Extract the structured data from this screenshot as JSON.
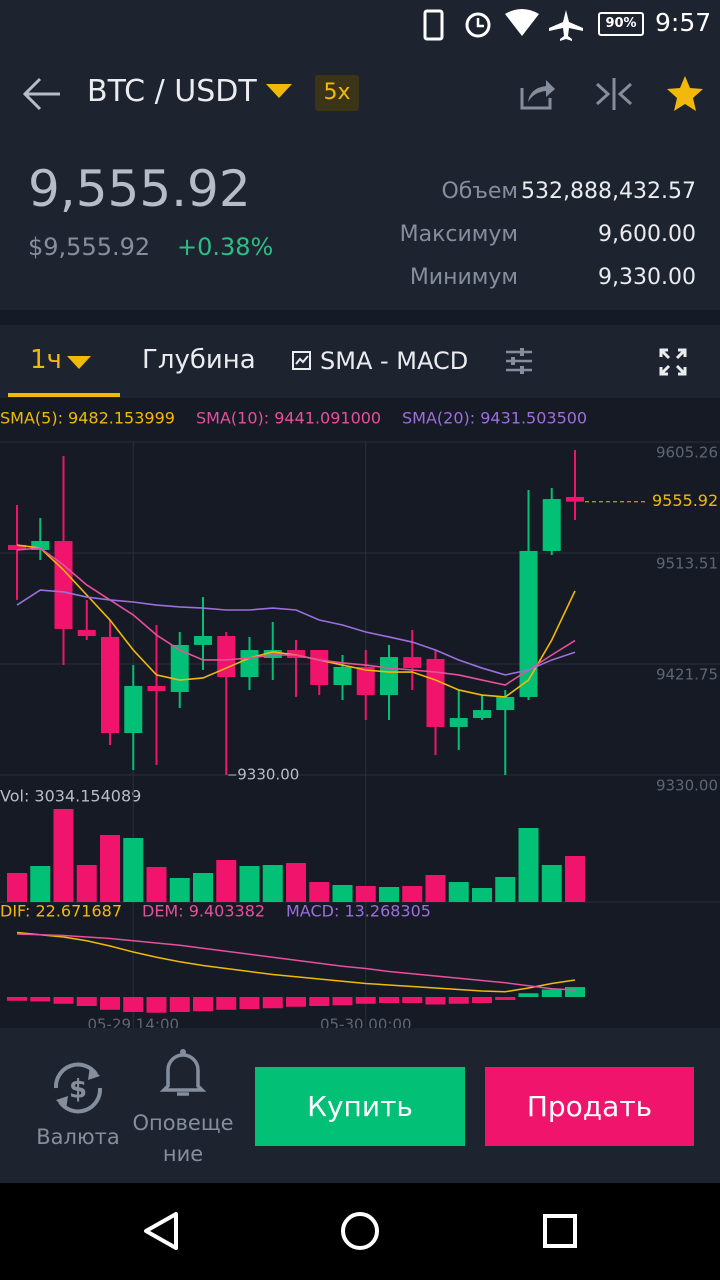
{
  "status": {
    "battery": "90%",
    "time": "9:57"
  },
  "header": {
    "pair": "BTC / USDT",
    "leverage": "5x"
  },
  "ticker": {
    "price": "9,555.92",
    "fiat": "$9,555.92",
    "change": "+0.38%",
    "stats": [
      {
        "label": "Объем",
        "value": "532,888,432.57"
      },
      {
        "label": "Максимум",
        "value": "9,600.00"
      },
      {
        "label": "Минимум",
        "value": "9,330.00"
      }
    ]
  },
  "tabs": [
    "1ч",
    "Глубина",
    "SMA - MACD"
  ],
  "chart_data": {
    "type": "candlestick",
    "sma_legend": [
      "SMA(5): 9482.153999",
      "SMA(10): 9441.091000",
      "SMA(20): 9431.503500"
    ],
    "vol_legend": "Vol: 3034.154089",
    "macd_legend": [
      "DIF: 22.671687",
      "DEM: 9.403382",
      "MACD: 13.268305"
    ],
    "last_price_label": "9555.92",
    "low_label": "9330.00",
    "time_labels": [
      "05-29 14:00",
      "05-30 00:00"
    ],
    "ylim": [
      9330,
      9605.26
    ],
    "yticks": [
      {
        "value": 9330,
        "label": "9330.00"
      },
      9421.75,
      9513.51,
      9605.26
    ],
    "up_color": "#02c076",
    "down_color": "#f0146c",
    "candles": [
      {
        "o": 9520.1,
        "h": 9553.2,
        "l": 9474.7,
        "c": 9516.0
      },
      {
        "o": 9516.0,
        "h": 9542.4,
        "l": 9507.7,
        "c": 9523.4
      },
      {
        "o": 9523.4,
        "h": 9593.7,
        "l": 9420.9,
        "c": 9450.7
      },
      {
        "o": 9449.9,
        "h": 9474.7,
        "l": 9441.6,
        "c": 9444.9
      },
      {
        "o": 9444.1,
        "h": 9458.1,
        "l": 9354.8,
        "c": 9364.7
      },
      {
        "o": 9364.7,
        "h": 9420.9,
        "l": 9334.1,
        "c": 9403.6
      },
      {
        "o": 9403.6,
        "h": 9454.0,
        "l": 9338.3,
        "c": 9399.4
      },
      {
        "o": 9398.6,
        "h": 9448.2,
        "l": 9385.4,
        "c": 9437.5
      },
      {
        "o": 9437.5,
        "h": 9477.1,
        "l": 9416.8,
        "c": 9444.9
      },
      {
        "o": 9444.9,
        "h": 9448.2,
        "l": 9330.0,
        "c": 9411.0
      },
      {
        "o": 9411.0,
        "h": 9444.1,
        "l": 9400.3,
        "c": 9433.3
      },
      {
        "o": 9426.7,
        "h": 9456.5,
        "l": 9408.5,
        "c": 9433.3
      },
      {
        "o": 9433.3,
        "h": 9441.6,
        "l": 9394.5,
        "c": 9426.7
      },
      {
        "o": 9433.3,
        "h": 9433.3,
        "l": 9396.1,
        "c": 9404.4
      },
      {
        "o": 9404.4,
        "h": 9429.2,
        "l": 9392.0,
        "c": 9419.3
      },
      {
        "o": 9419.3,
        "h": 9433.3,
        "l": 9375.5,
        "c": 9396.1
      },
      {
        "o": 9396.1,
        "h": 9437.5,
        "l": 9375.5,
        "c": 9427.5
      },
      {
        "o": 9427.5,
        "h": 9449.9,
        "l": 9400.3,
        "c": 9418.4
      },
      {
        "o": 9425.9,
        "h": 9433.3,
        "l": 9346.5,
        "c": 9369.7
      },
      {
        "o": 9369.7,
        "h": 9400.3,
        "l": 9350.7,
        "c": 9377.1
      },
      {
        "o": 9377.1,
        "h": 9396.1,
        "l": 9375.5,
        "c": 9383.7
      },
      {
        "o": 9383.7,
        "h": 9400.3,
        "l": 9330.0,
        "c": 9394.5
      },
      {
        "o": 9394.5,
        "h": 9565.6,
        "l": 9392.0,
        "c": 9515.2
      },
      {
        "o": 9515.2,
        "h": 9567.2,
        "l": 9511.9,
        "c": 9558.1
      },
      {
        "o": 9559.8,
        "h": 9598.6,
        "l": 9540.8,
        "c": 9555.92
      }
    ],
    "sma": [
      {
        "color": "#f0b90b",
        "values": [
          9520.1,
          9517.6,
          9499.5,
          9478.8,
          9458.1,
          9433.3,
          9412.7,
          9408.5,
          9410.2,
          9418.4,
          9426.7,
          9431.7,
          9429.2,
          9425.1,
          9420.9,
          9416.8,
          9415.1,
          9415.1,
          9408.5,
          9400.3,
          9396.1,
          9394.5,
          9408.5,
          9441.6,
          9482.153999
        ]
      },
      {
        "color": "#e84f9c",
        "values": [
          9516.0,
          9517.6,
          9503.6,
          9487.1,
          9474.7,
          9462.3,
          9445.7,
          9433.3,
          9425.1,
          9425.1,
          9426.7,
          9429.2,
          9429.2,
          9425.1,
          9422.6,
          9420.9,
          9418.4,
          9416.8,
          9415.1,
          9412.7,
          9408.5,
          9404.4,
          9416.8,
          9429.2,
          9441.091
        ]
      },
      {
        "color": "#9b6fdc",
        "values": [
          9470.5,
          9482.9,
          9481.3,
          9477.1,
          9474.7,
          9473.0,
          9470.5,
          9468.9,
          9468.0,
          9466.4,
          9466.4,
          9468.0,
          9466.4,
          9458.1,
          9454.0,
          9448.2,
          9444.1,
          9439.9,
          9433.3,
          9425.1,
          9418.4,
          9412.7,
          9416.8,
          9425.1,
          9431.5035
        ]
      }
    ],
    "volume": [
      1914,
      2375,
      6134,
      2440,
      4419,
      4221,
      2309,
      1583,
      1913,
      2770,
      2375,
      2440,
      2572,
      1319,
      1121,
      1055,
      989,
      1055,
      1781,
      1319,
      923,
      1649,
      4881,
      2440,
      3034.154089
    ],
    "macd": {
      "dif": {
        "color": "#f0b90b",
        "values": [
          86,
          83,
          80,
          75,
          68,
          60,
          53,
          47,
          42,
          38,
          34,
          30,
          27,
          24,
          21,
          18,
          16,
          14,
          12,
          10,
          8,
          7,
          12,
          18,
          22.671687
        ]
      },
      "dem": {
        "color": "#e84f9c",
        "values": [
          84,
          83,
          82,
          80,
          78,
          75,
          72,
          69,
          65,
          61,
          57,
          53,
          49,
          45,
          41,
          38,
          34,
          31,
          28,
          25,
          22,
          19,
          15,
          11,
          9.403382
        ]
      },
      "hist": [
        -5,
        -6,
        -9,
        -12,
        -17,
        -20,
        -21,
        -20,
        -19,
        -17,
        -16,
        -15,
        -13,
        -12,
        -11,
        -9,
        -8,
        -8,
        -10,
        -9,
        -8,
        -4,
        5,
        10,
        13.268305
      ]
    }
  },
  "bottom": {
    "currency": "Валюта",
    "alerts": [
      "Оповеще",
      "ние"
    ],
    "buy": "Купить",
    "sell": "Продать"
  }
}
